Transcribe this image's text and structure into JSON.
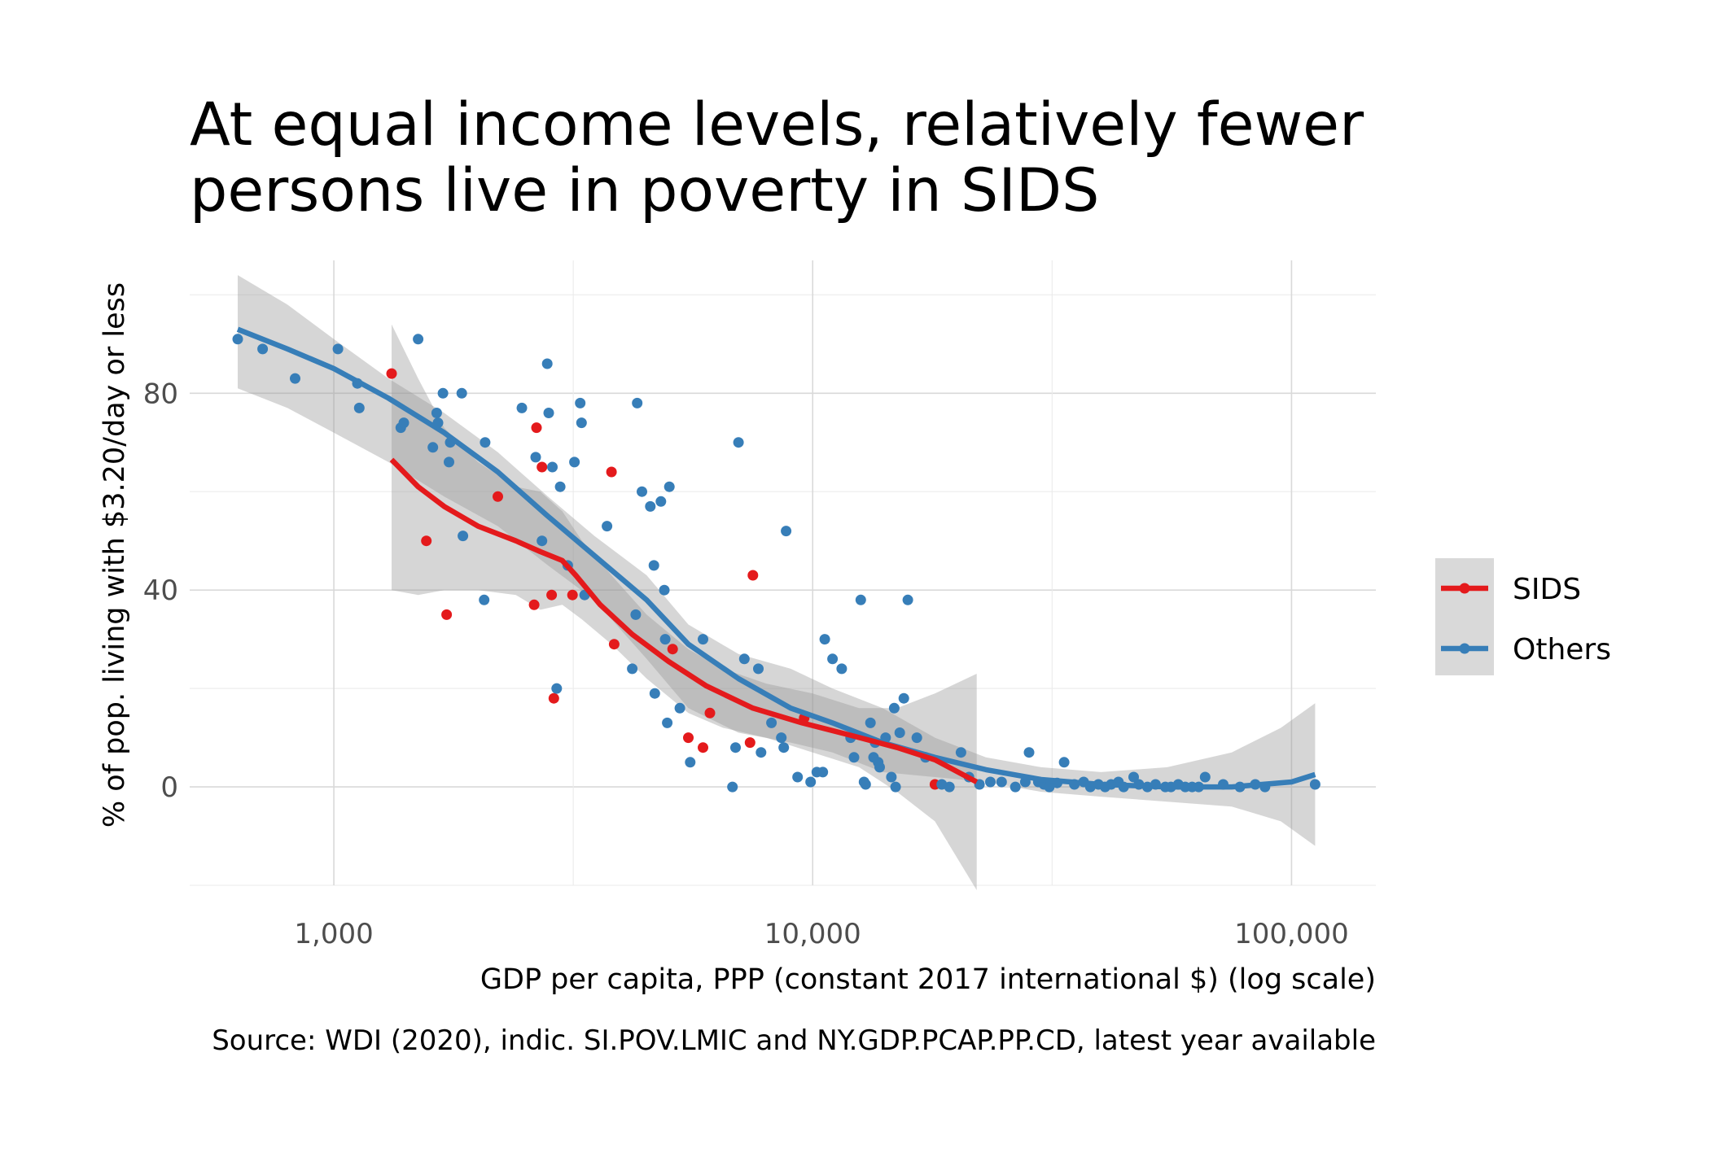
{
  "chart_data": {
    "type": "scatter",
    "title_lines": [
      "At equal income levels, relatively fewer",
      "persons live in poverty in SIDS"
    ],
    "xlabel": "GDP per capita, PPP (constant 2017 international $) (log scale)",
    "ylabel": "% of pop. living with $3.20/day or less",
    "caption": "Source: WDI (2020), indic. SI.POV.LMIC and NY.GDP.PCAP.PP.CD, latest year available",
    "x_scale": "log10",
    "xlim": [
      500,
      150000
    ],
    "ylim": [
      -20,
      107
    ],
    "x_ticks": [
      1000,
      10000,
      100000
    ],
    "x_tick_labels": [
      "1,000",
      "10,000",
      "100,000"
    ],
    "y_ticks": [
      0,
      40,
      80
    ],
    "y_tick_labels": [
      "0",
      "40",
      "80"
    ],
    "grid": true,
    "legend_position": "right",
    "series": [
      {
        "name": "SIDS",
        "color": "#e41a1c",
        "points": [
          [
            1320,
            84
          ],
          [
            1560,
            50
          ],
          [
            1720,
            35
          ],
          [
            2200,
            59
          ],
          [
            2620,
            37
          ],
          [
            2650,
            73
          ],
          [
            2720,
            65
          ],
          [
            2850,
            39
          ],
          [
            2880,
            18
          ],
          [
            3150,
            39
          ],
          [
            3850,
            29
          ],
          [
            3800,
            64
          ],
          [
            5100,
            28
          ],
          [
            5500,
            10
          ],
          [
            6100,
            15
          ],
          [
            5900,
            8
          ],
          [
            7500,
            43
          ],
          [
            7400,
            9
          ],
          [
            9600,
            14
          ],
          [
            18000,
            0.5
          ]
        ],
        "smooth": [
          [
            1320,
            66.5
          ],
          [
            1500,
            61
          ],
          [
            1700,
            57
          ],
          [
            2000,
            53
          ],
          [
            2400,
            50
          ],
          [
            2700,
            47.8
          ],
          [
            3000,
            46
          ],
          [
            3200,
            43
          ],
          [
            3600,
            37
          ],
          [
            4200,
            31
          ],
          [
            5000,
            25.5
          ],
          [
            6000,
            20.5
          ],
          [
            7500,
            16
          ],
          [
            9500,
            13
          ],
          [
            12000,
            10.5
          ],
          [
            15000,
            8
          ],
          [
            18000,
            5.5
          ],
          [
            22000,
            1
          ]
        ],
        "band_upper": [
          [
            1320,
            94
          ],
          [
            1500,
            83
          ],
          [
            1700,
            73
          ],
          [
            2000,
            66
          ],
          [
            2400,
            61
          ],
          [
            2700,
            60
          ],
          [
            3000,
            56
          ],
          [
            3300,
            50
          ],
          [
            3800,
            43
          ],
          [
            4500,
            35
          ],
          [
            5500,
            28
          ],
          [
            6500,
            24
          ],
          [
            8000,
            21
          ],
          [
            10000,
            19
          ],
          [
            12500,
            16
          ],
          [
            15000,
            16
          ],
          [
            18000,
            19
          ],
          [
            22000,
            23
          ]
        ],
        "band_lower": [
          [
            22000,
            -21
          ],
          [
            18000,
            -7
          ],
          [
            15000,
            -1
          ],
          [
            12500,
            4
          ],
          [
            10000,
            7
          ],
          [
            8000,
            10
          ],
          [
            6500,
            12
          ],
          [
            5500,
            15
          ],
          [
            4500,
            22
          ],
          [
            3800,
            29
          ],
          [
            3300,
            34
          ],
          [
            3000,
            37
          ],
          [
            2700,
            36
          ],
          [
            2400,
            39
          ],
          [
            2000,
            40
          ],
          [
            1700,
            40
          ],
          [
            1500,
            39
          ],
          [
            1320,
            40
          ]
        ]
      },
      {
        "name": "Others",
        "color": "#377eb8",
        "points": [
          [
            630,
            91
          ],
          [
            710,
            89
          ],
          [
            830,
            83
          ],
          [
            1020,
            89
          ],
          [
            1120,
            82
          ],
          [
            1130,
            77
          ],
          [
            1380,
            73
          ],
          [
            1400,
            74
          ],
          [
            1500,
            91
          ],
          [
            1610,
            69
          ],
          [
            1640,
            76
          ],
          [
            1650,
            74
          ],
          [
            1690,
            80
          ],
          [
            1740,
            66
          ],
          [
            1750,
            70
          ],
          [
            1850,
            80
          ],
          [
            1860,
            51
          ],
          [
            2060,
            38
          ],
          [
            2070,
            70
          ],
          [
            2470,
            77
          ],
          [
            2640,
            67
          ],
          [
            2720,
            50
          ],
          [
            2790,
            86
          ],
          [
            2810,
            76
          ],
          [
            2860,
            65
          ],
          [
            2920,
            20
          ],
          [
            2970,
            61
          ],
          [
            3080,
            45
          ],
          [
            3180,
            66
          ],
          [
            3270,
            78
          ],
          [
            3290,
            74
          ],
          [
            3340,
            39
          ],
          [
            3720,
            53
          ],
          [
            4200,
            24
          ],
          [
            4270,
            35
          ],
          [
            4300,
            78
          ],
          [
            4400,
            60
          ],
          [
            4580,
            57
          ],
          [
            4680,
            19
          ],
          [
            4660,
            45
          ],
          [
            4820,
            58
          ],
          [
            4900,
            40
          ],
          [
            4920,
            30
          ],
          [
            4970,
            13
          ],
          [
            5020,
            61
          ],
          [
            5280,
            16
          ],
          [
            5550,
            5
          ],
          [
            5900,
            30
          ],
          [
            6800,
            0
          ],
          [
            6900,
            8
          ],
          [
            7000,
            70
          ],
          [
            7200,
            26
          ],
          [
            7700,
            24
          ],
          [
            7800,
            7
          ],
          [
            8200,
            13
          ],
          [
            8600,
            10
          ],
          [
            8700,
            8
          ],
          [
            8800,
            52
          ],
          [
            9300,
            2
          ],
          [
            9900,
            1
          ],
          [
            10200,
            3
          ],
          [
            10500,
            3
          ],
          [
            10600,
            30
          ],
          [
            11000,
            26
          ],
          [
            11500,
            24
          ],
          [
            12000,
            10
          ],
          [
            12200,
            6
          ],
          [
            12600,
            38
          ],
          [
            12800,
            1
          ],
          [
            12900,
            0.5
          ],
          [
            13200,
            13
          ],
          [
            13400,
            6
          ],
          [
            13500,
            9
          ],
          [
            13700,
            5
          ],
          [
            13800,
            4
          ],
          [
            14200,
            10
          ],
          [
            14600,
            2
          ],
          [
            14800,
            16
          ],
          [
            14900,
            0
          ],
          [
            15200,
            11
          ],
          [
            15500,
            18
          ],
          [
            15800,
            38
          ],
          [
            16500,
            10
          ],
          [
            17200,
            6
          ],
          [
            18600,
            0.5
          ],
          [
            19300,
            0
          ],
          [
            20400,
            7
          ],
          [
            21200,
            2
          ],
          [
            22300,
            0.5
          ],
          [
            23500,
            1
          ],
          [
            24800,
            1
          ],
          [
            26500,
            0
          ],
          [
            27800,
            1
          ],
          [
            28300,
            7
          ],
          [
            29600,
            1
          ],
          [
            30400,
            0.5
          ],
          [
            31200,
            0
          ],
          [
            32400,
            0.8
          ],
          [
            33500,
            5
          ],
          [
            35200,
            0.5
          ],
          [
            36800,
            1
          ],
          [
            38000,
            0
          ],
          [
            39500,
            0.5
          ],
          [
            40800,
            0
          ],
          [
            42000,
            0.5
          ],
          [
            43500,
            1
          ],
          [
            44600,
            0
          ],
          [
            46800,
            2
          ],
          [
            48000,
            0.5
          ],
          [
            50000,
            0
          ],
          [
            52000,
            0.5
          ],
          [
            54500,
            0
          ],
          [
            56000,
            0
          ],
          [
            58000,
            0.5
          ],
          [
            60000,
            0
          ],
          [
            62000,
            0
          ],
          [
            64000,
            0
          ],
          [
            66000,
            2
          ],
          [
            72000,
            0.5
          ],
          [
            78000,
            0
          ],
          [
            84000,
            0.5
          ],
          [
            88000,
            0
          ],
          [
            112000,
            0.5
          ]
        ],
        "smooth": [
          [
            630,
            93
          ],
          [
            800,
            89
          ],
          [
            1000,
            85
          ],
          [
            1300,
            79
          ],
          [
            1700,
            72
          ],
          [
            2200,
            64
          ],
          [
            2800,
            55
          ],
          [
            3500,
            47
          ],
          [
            4500,
            38
          ],
          [
            5500,
            29
          ],
          [
            7000,
            22
          ],
          [
            9000,
            16
          ],
          [
            11000,
            13
          ],
          [
            14000,
            9
          ],
          [
            18000,
            6
          ],
          [
            23000,
            3.5
          ],
          [
            30000,
            1.5
          ],
          [
            40000,
            0.5
          ],
          [
            55000,
            0
          ],
          [
            75000,
            0
          ],
          [
            100000,
            1
          ],
          [
            112000,
            2.5
          ]
        ],
        "band_upper": [
          [
            630,
            104
          ],
          [
            800,
            98
          ],
          [
            1000,
            91
          ],
          [
            1300,
            83
          ],
          [
            1700,
            76
          ],
          [
            2200,
            68
          ],
          [
            2800,
            59
          ],
          [
            3500,
            51
          ],
          [
            4500,
            43
          ],
          [
            5500,
            33
          ],
          [
            7000,
            27
          ],
          [
            9000,
            24
          ],
          [
            11000,
            20
          ],
          [
            14000,
            16
          ],
          [
            18000,
            10
          ],
          [
            23000,
            6
          ],
          [
            30000,
            4
          ],
          [
            40000,
            3
          ],
          [
            55000,
            4
          ],
          [
            75000,
            7
          ],
          [
            95000,
            12
          ],
          [
            112000,
            17
          ]
        ],
        "band_lower": [
          [
            112000,
            -12
          ],
          [
            95000,
            -7
          ],
          [
            75000,
            -4
          ],
          [
            55000,
            -3
          ],
          [
            40000,
            -2
          ],
          [
            30000,
            -1
          ],
          [
            23000,
            1
          ],
          [
            18000,
            2
          ],
          [
            14000,
            3
          ],
          [
            11000,
            7
          ],
          [
            9000,
            9
          ],
          [
            7000,
            11
          ],
          [
            5500,
            16
          ],
          [
            4500,
            26
          ],
          [
            3500,
            38
          ],
          [
            2800,
            45
          ],
          [
            2200,
            53
          ],
          [
            1700,
            59
          ],
          [
            1300,
            66
          ],
          [
            1000,
            72
          ],
          [
            800,
            77
          ],
          [
            630,
            81
          ]
        ]
      }
    ]
  }
}
